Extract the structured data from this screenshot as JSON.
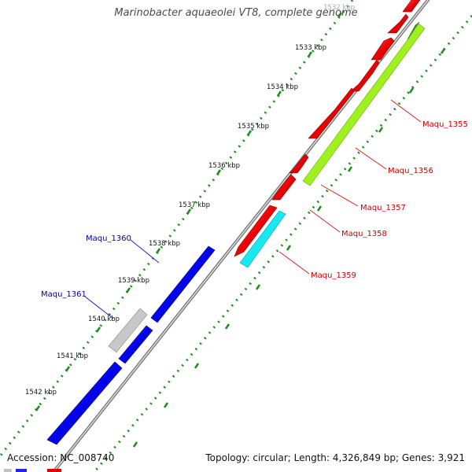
{
  "title": "Marinobacter aquaeolei VT8, complete genome",
  "footer": {
    "accession": "Accession: NC_008740",
    "summary": "Topology: circular; Length: 4,326,849 bp; Genes: 3,921"
  },
  "scale_labels": [
    "1532 kbp",
    "1533 kbp",
    "1534 kbp",
    "1535 kbp",
    "1536 kbp",
    "1537 kbp",
    "1538 kbp",
    "1539 kbp",
    "1540 kbp",
    "1541 kbp",
    "1542 kbp"
  ],
  "forward_genes": [
    {
      "label": "Maqu_1355",
      "color": "#ff0000"
    },
    {
      "label": "Maqu_1356",
      "color": "#ff0000"
    },
    {
      "label": "Maqu_1357",
      "color": "#ff0000"
    },
    {
      "label": "Maqu_1358",
      "color": "#ff0000"
    }
  ],
  "feature_labels": {
    "forward": [
      "Maqu_1355",
      "Maqu_1356",
      "Maqu_1357",
      "Maqu_1358",
      "Maqu_1359"
    ],
    "reverse": [
      "Maqu_1360",
      "Maqu_1361"
    ]
  },
  "colors": {
    "forward_gene": "#ff0000",
    "reverse_gene": "#0000ff",
    "rna_feature": "#00e5ee",
    "misc_feature": "#99ff00",
    "misc_feature_dark": "#228b22",
    "pseudo_feature": "#bfbfbf",
    "backbone": "#808080",
    "tick": "#008000",
    "forward_label": "#cc0000",
    "reverse_label": "#000099"
  }
}
